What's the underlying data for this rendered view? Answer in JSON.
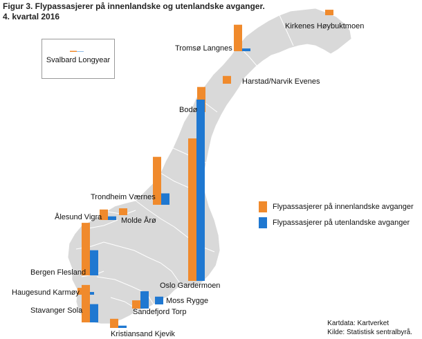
{
  "title": {
    "line1": "Figur 3. Flypassasjerer på innenlandske og utenlandske avganger.",
    "line2": "4. kvartal 2016"
  },
  "colors": {
    "domestic": "#f08a2c",
    "international": "#1f78d1",
    "land": "#d9d9d9",
    "border": "#ffffff",
    "water": "#ffffff"
  },
  "legend": {
    "domestic": "Flypassasjerer på innenlandske avganger",
    "international": "Flypassasjerer på utenlandske avganger"
  },
  "svalbard": {
    "label": "Svalbard Longyear",
    "domestic": 0.25,
    "international": 0.05
  },
  "airports": [
    {
      "id": "kirkenes",
      "label": "Kirkenes Høybuktmoen",
      "domestic": 0.12,
      "international": 0.0
    },
    {
      "id": "tromso",
      "label": "Tromsø Langnes",
      "domestic": 0.58,
      "international": 0.06
    },
    {
      "id": "harstad",
      "label": "Harstad/Narvik Evenes",
      "domestic": 0.17,
      "international": 0.0
    },
    {
      "id": "bodo",
      "label": "Bodø",
      "domestic": 0.55,
      "international": 0.0
    },
    {
      "id": "trondheim",
      "label": "Trondheim Værnes",
      "domestic": 1.05,
      "international": 0.25
    },
    {
      "id": "alesund",
      "label": "Ålesund Vigra",
      "domestic": 0.23,
      "international": 0.08
    },
    {
      "id": "molde",
      "label": "Molde Årø",
      "domestic": 0.15,
      "international": 0.0
    },
    {
      "id": "bergen",
      "label": "Bergen Flesland",
      "domestic": 1.15,
      "international": 0.55
    },
    {
      "id": "haugesund",
      "label": "Haugesund Karmøy",
      "domestic": 0.15,
      "international": 0.06
    },
    {
      "id": "stavanger",
      "label": "Stavanger Sola",
      "domestic": 0.82,
      "international": 0.4
    },
    {
      "id": "kristiansand",
      "label": "Kristiansand Kjevik",
      "domestic": 0.2,
      "international": 0.05
    },
    {
      "id": "torp",
      "label": "Sandefjord Torp",
      "domestic": 0.18,
      "international": 0.38
    },
    {
      "id": "rygge",
      "label": "Moss Rygge",
      "domestic": 0.0,
      "international": 0.17
    },
    {
      "id": "gardermoen",
      "label": "Oslo Gardermoen",
      "domestic": 3.12,
      "international": 3.97
    }
  ],
  "source": {
    "line1": "Kartdata: Kartverket",
    "line2": "Kilde: Statistisk sentralbyrå."
  }
}
